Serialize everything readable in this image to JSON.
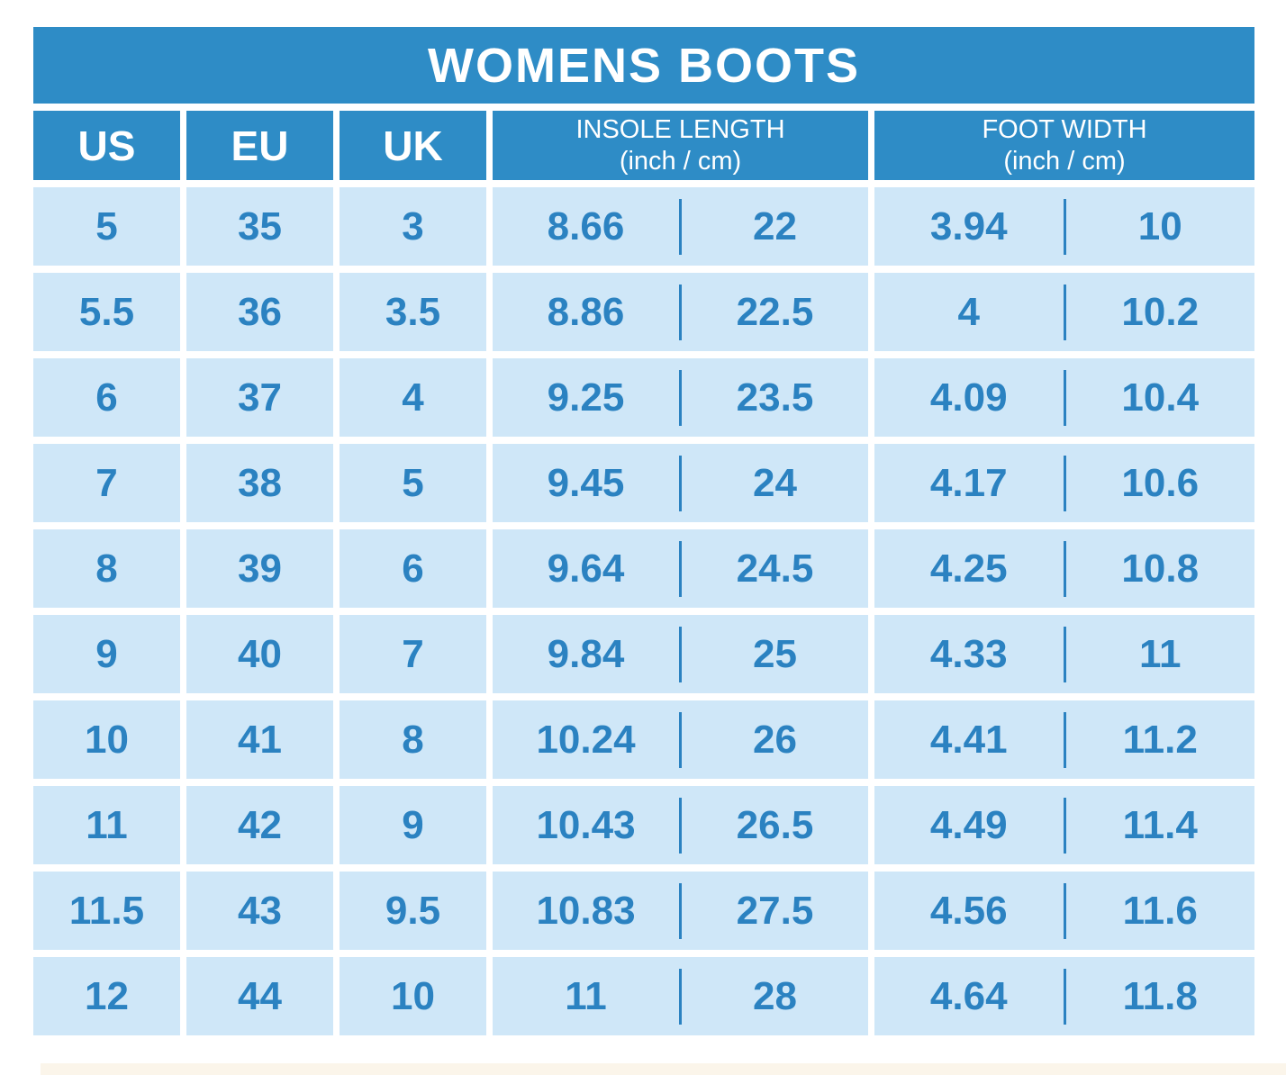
{
  "title": "WOMENS BOOTS",
  "columns": [
    {
      "label": "US"
    },
    {
      "label": "EU"
    },
    {
      "label": "UK"
    },
    {
      "label": "INSOLE LENGTH",
      "sublabel": "(inch / cm)"
    },
    {
      "label": "FOOT WIDTH",
      "sublabel": "(inch / cm)"
    }
  ],
  "rows": [
    {
      "us": "5",
      "eu": "35",
      "uk": "3",
      "insole_inch": "8.66",
      "insole_cm": "22",
      "width_inch": "3.94",
      "width_cm": "10"
    },
    {
      "us": "5.5",
      "eu": "36",
      "uk": "3.5",
      "insole_inch": "8.86",
      "insole_cm": "22.5",
      "width_inch": "4",
      "width_cm": "10.2"
    },
    {
      "us": "6",
      "eu": "37",
      "uk": "4",
      "insole_inch": "9.25",
      "insole_cm": "23.5",
      "width_inch": "4.09",
      "width_cm": "10.4"
    },
    {
      "us": "7",
      "eu": "38",
      "uk": "5",
      "insole_inch": "9.45",
      "insole_cm": "24",
      "width_inch": "4.17",
      "width_cm": "10.6"
    },
    {
      "us": "8",
      "eu": "39",
      "uk": "6",
      "insole_inch": "9.64",
      "insole_cm": "24.5",
      "width_inch": "4.25",
      "width_cm": "10.8"
    },
    {
      "us": "9",
      "eu": "40",
      "uk": "7",
      "insole_inch": "9.84",
      "insole_cm": "25",
      "width_inch": "4.33",
      "width_cm": "11"
    },
    {
      "us": "10",
      "eu": "41",
      "uk": "8",
      "insole_inch": "10.24",
      "insole_cm": "26",
      "width_inch": "4.41",
      "width_cm": "11.2"
    },
    {
      "us": "11",
      "eu": "42",
      "uk": "9",
      "insole_inch": "10.43",
      "insole_cm": "26.5",
      "width_inch": "4.49",
      "width_cm": "11.4"
    },
    {
      "us": "11.5",
      "eu": "43",
      "uk": "9.5",
      "insole_inch": "10.83",
      "insole_cm": "27.5",
      "width_inch": "4.56",
      "width_cm": "11.6"
    },
    {
      "us": "12",
      "eu": "44",
      "uk": "10",
      "insole_inch": "11",
      "insole_cm": "28",
      "width_inch": "4.64",
      "width_cm": "11.8"
    }
  ],
  "colors": {
    "header_blue": "#2e8cc6",
    "cell_light_blue": "#cfe7f8",
    "text_blue": "#2b82c1",
    "background": "#ffffff",
    "bottom_strip": "#fbf5ea"
  },
  "chart_data": {
    "type": "table",
    "title": "WOMENS BOOTS",
    "columns": [
      "US",
      "EU",
      "UK",
      "INSOLE LENGTH (inch / cm)",
      "FOOT WIDTH (inch / cm)"
    ],
    "rows": [
      [
        "5",
        "35",
        "3",
        "8.66 / 22",
        "3.94 / 10"
      ],
      [
        "5.5",
        "36",
        "3.5",
        "8.86 / 22.5",
        "4 / 10.2"
      ],
      [
        "6",
        "37",
        "4",
        "9.25 / 23.5",
        "4.09 / 10.4"
      ],
      [
        "7",
        "38",
        "5",
        "9.45 / 24",
        "4.17 / 10.6"
      ],
      [
        "8",
        "39",
        "6",
        "9.64 / 24.5",
        "4.25 / 10.8"
      ],
      [
        "9",
        "40",
        "7",
        "9.84 / 25",
        "4.33 / 11"
      ],
      [
        "10",
        "41",
        "8",
        "10.24 / 26",
        "4.41 / 11.2"
      ],
      [
        "11",
        "42",
        "9",
        "10.43 / 26.5",
        "4.49 / 11.4"
      ],
      [
        "11.5",
        "43",
        "9.5",
        "10.83 / 27.5",
        "4.56 / 11.6"
      ],
      [
        "12",
        "44",
        "10",
        "11 / 28",
        "4.64 / 11.8"
      ]
    ]
  }
}
